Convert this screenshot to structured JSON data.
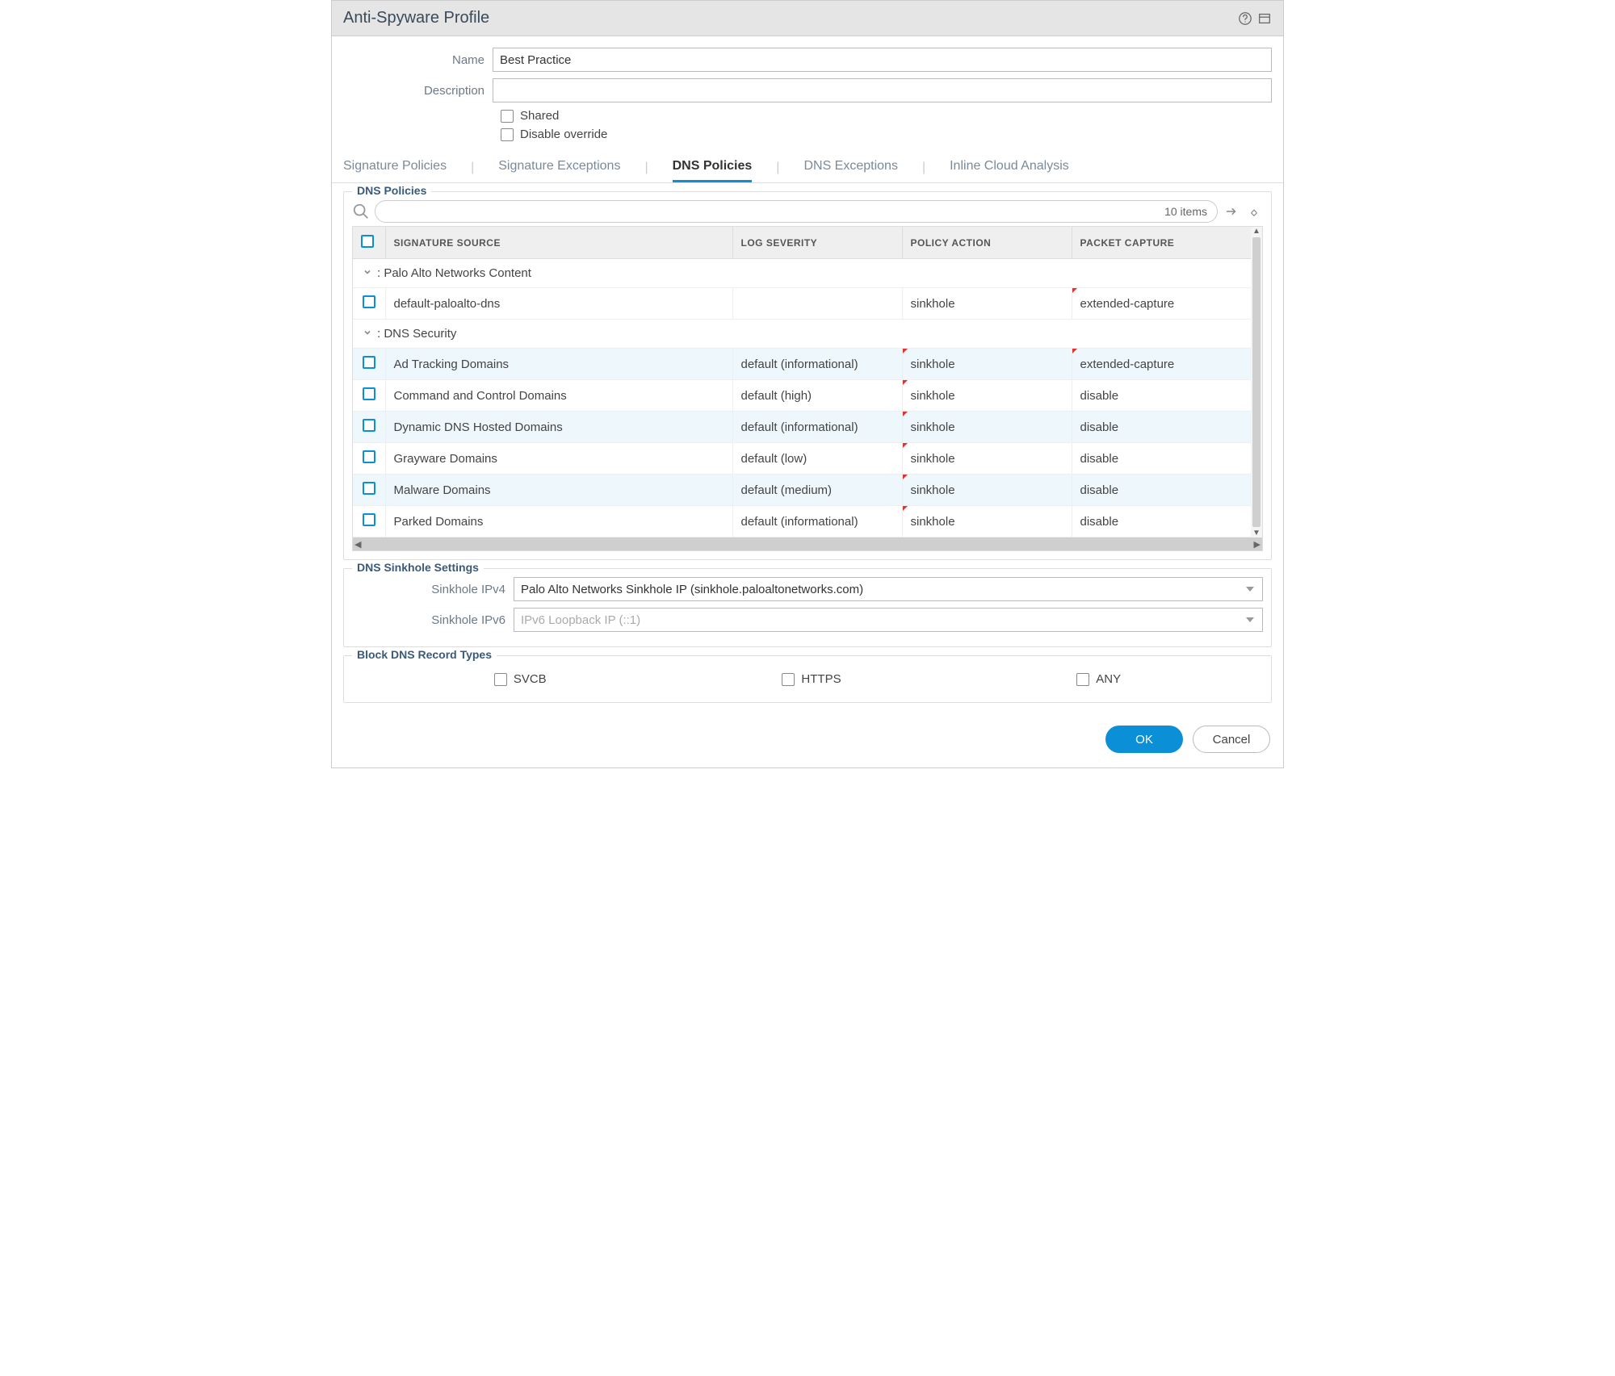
{
  "title": "Anti-Spyware Profile",
  "form": {
    "name_label": "Name",
    "name_value": "Best Practice",
    "desc_label": "Description",
    "desc_value": "",
    "shared_label": "Shared",
    "disable_override_label": "Disable override"
  },
  "tabs": {
    "sig_policies": "Signature Policies",
    "sig_exceptions": "Signature Exceptions",
    "dns_policies": "DNS Policies",
    "dns_exceptions": "DNS Exceptions",
    "inline_cloud": "Inline Cloud Analysis"
  },
  "dns_policies": {
    "legend": "DNS Policies",
    "item_count": "10 items",
    "columns": {
      "source": "SIGNATURE SOURCE",
      "log": "LOG SEVERITY",
      "action": "POLICY ACTION",
      "capture": "PACKET CAPTURE"
    },
    "groups": [
      {
        "label": ": Palo Alto Networks Content"
      },
      {
        "label": ": DNS Security"
      }
    ],
    "rows_g1": [
      {
        "source": "default-paloalto-dns",
        "log": "",
        "action": "sinkhole",
        "capture": "extended-capture",
        "alt": false,
        "action_mark": false,
        "capture_mark": true
      }
    ],
    "rows_g2": [
      {
        "source": "Ad Tracking Domains",
        "log": "default (informational)",
        "action": "sinkhole",
        "capture": "extended-capture",
        "alt": true,
        "action_mark": true,
        "capture_mark": true
      },
      {
        "source": "Command and Control Domains",
        "log": "default (high)",
        "action": "sinkhole",
        "capture": "disable",
        "alt": false,
        "action_mark": true,
        "capture_mark": false
      },
      {
        "source": "Dynamic DNS Hosted Domains",
        "log": "default (informational)",
        "action": "sinkhole",
        "capture": "disable",
        "alt": true,
        "action_mark": true,
        "capture_mark": false
      },
      {
        "source": "Grayware Domains",
        "log": "default (low)",
        "action": "sinkhole",
        "capture": "disable",
        "alt": false,
        "action_mark": true,
        "capture_mark": false
      },
      {
        "source": "Malware Domains",
        "log": "default (medium)",
        "action": "sinkhole",
        "capture": "disable",
        "alt": true,
        "action_mark": true,
        "capture_mark": false
      },
      {
        "source": "Parked Domains",
        "log": "default (informational)",
        "action": "sinkhole",
        "capture": "disable",
        "alt": false,
        "action_mark": true,
        "capture_mark": false
      }
    ]
  },
  "sinkhole": {
    "legend": "DNS Sinkhole Settings",
    "ipv4_label": "Sinkhole IPv4",
    "ipv4_value": "Palo Alto Networks Sinkhole IP (sinkhole.paloaltonetworks.com)",
    "ipv6_label": "Sinkhole IPv6",
    "ipv6_placeholder": "IPv6 Loopback IP (::1)"
  },
  "block": {
    "legend": "Block DNS Record Types",
    "svcb": "SVCB",
    "https": "HTTPS",
    "any": "ANY"
  },
  "footer": {
    "ok": "OK",
    "cancel": "Cancel"
  },
  "colors": {
    "accent": "#0b8fd6",
    "header_bg": "#e5e5e5",
    "label": "#6a7a88",
    "legend": "#3a5a7a",
    "row_alt": "#eef7fb"
  }
}
